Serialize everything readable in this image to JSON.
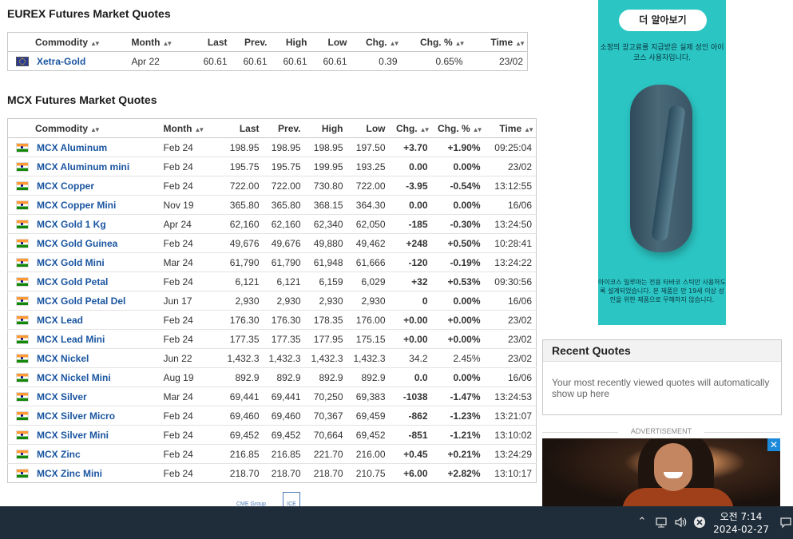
{
  "eurex": {
    "title": "EUREX Futures Market Quotes",
    "headers": {
      "commodity": "Commodity",
      "month": "Month",
      "last": "Last",
      "prev": "Prev.",
      "high": "High",
      "low": "Low",
      "chg": "Chg.",
      "chg_pct": "Chg. %",
      "time": "Time"
    },
    "rows": [
      {
        "name": "Xetra-Gold",
        "month": "Apr 22",
        "last": "60.61",
        "prev": "60.61",
        "high": "60.61",
        "low": "60.61",
        "chg": "0.39",
        "chg_pct": "0.65%",
        "time": "23/02"
      }
    ]
  },
  "mcx": {
    "title": "MCX Futures Market Quotes",
    "headers": {
      "commodity": "Commodity",
      "month": "Month",
      "last": "Last",
      "prev": "Prev.",
      "high": "High",
      "low": "Low",
      "chg": "Chg.",
      "chg_pct": "Chg. %",
      "time": "Time"
    },
    "rows": [
      {
        "name": "MCX Aluminum",
        "month": "Feb 24",
        "last": "198.95",
        "prev": "198.95",
        "high": "198.95",
        "low": "197.50",
        "chg": "+3.70",
        "chg_pct": "+1.90%",
        "time": "09:25:04"
      },
      {
        "name": "MCX Aluminum mini",
        "month": "Feb 24",
        "last": "195.75",
        "prev": "195.75",
        "high": "199.95",
        "low": "193.25",
        "chg": "0.00",
        "chg_pct": "0.00%",
        "time": "23/02"
      },
      {
        "name": "MCX Copper",
        "month": "Feb 24",
        "last": "722.00",
        "prev": "722.00",
        "high": "730.80",
        "low": "722.00",
        "chg": "-3.95",
        "chg_pct": "-0.54%",
        "time": "13:12:55"
      },
      {
        "name": "MCX Copper Mini",
        "month": "Nov 19",
        "last": "365.80",
        "prev": "365.80",
        "high": "368.15",
        "low": "364.30",
        "chg": "0.00",
        "chg_pct": "0.00%",
        "time": "16/06"
      },
      {
        "name": "MCX Gold 1 Kg",
        "month": "Apr 24",
        "last": "62,160",
        "prev": "62,160",
        "high": "62,340",
        "low": "62,050",
        "chg": "-185",
        "chg_pct": "-0.30%",
        "time": "13:24:50"
      },
      {
        "name": "MCX Gold Guinea",
        "month": "Feb 24",
        "last": "49,676",
        "prev": "49,676",
        "high": "49,880",
        "low": "49,462",
        "chg": "+248",
        "chg_pct": "+0.50%",
        "time": "10:28:41"
      },
      {
        "name": "MCX Gold Mini",
        "month": "Mar 24",
        "last": "61,790",
        "prev": "61,790",
        "high": "61,948",
        "low": "61,666",
        "chg": "-120",
        "chg_pct": "-0.19%",
        "time": "13:24:22"
      },
      {
        "name": "MCX Gold Petal",
        "month": "Feb 24",
        "last": "6,121",
        "prev": "6,121",
        "high": "6,159",
        "low": "6,029",
        "chg": "+32",
        "chg_pct": "+0.53%",
        "time": "09:30:56"
      },
      {
        "name": "MCX Gold Petal Del",
        "month": "Jun 17",
        "last": "2,930",
        "prev": "2,930",
        "high": "2,930",
        "low": "2,930",
        "chg": "0",
        "chg_pct": "0.00%",
        "time": "16/06"
      },
      {
        "name": "MCX Lead",
        "month": "Feb 24",
        "last": "176.30",
        "prev": "176.30",
        "high": "178.35",
        "low": "176.00",
        "chg": "+0.00",
        "chg_pct": "+0.00%",
        "time": "23/02"
      },
      {
        "name": "MCX Lead Mini",
        "month": "Feb 24",
        "last": "177.35",
        "prev": "177.35",
        "high": "177.95",
        "low": "175.15",
        "chg": "+0.00",
        "chg_pct": "+0.00%",
        "time": "23/02"
      },
      {
        "name": "MCX Nickel",
        "month": "Jun 22",
        "last": "1,432.3",
        "prev": "1,432.3",
        "high": "1,432.3",
        "low": "1,432.3",
        "chg": "34.2",
        "chg_pct": "2.45%",
        "time": "23/02"
      },
      {
        "name": "MCX Nickel Mini",
        "month": "Aug 19",
        "last": "892.9",
        "prev": "892.9",
        "high": "892.9",
        "low": "892.9",
        "chg": "0.0",
        "chg_pct": "0.00%",
        "time": "16/06"
      },
      {
        "name": "MCX Silver",
        "month": "Mar 24",
        "last": "69,441",
        "prev": "69,441",
        "high": "70,250",
        "low": "69,383",
        "chg": "-1038",
        "chg_pct": "-1.47%",
        "time": "13:24:53"
      },
      {
        "name": "MCX Silver Micro",
        "month": "Feb 24",
        "last": "69,460",
        "prev": "69,460",
        "high": "70,367",
        "low": "69,459",
        "chg": "-862",
        "chg_pct": "-1.23%",
        "time": "13:21:07"
      },
      {
        "name": "MCX Silver Mini",
        "month": "Feb 24",
        "last": "69,452",
        "prev": "69,452",
        "high": "70,664",
        "low": "69,452",
        "chg": "-851",
        "chg_pct": "-1.21%",
        "time": "13:10:02"
      },
      {
        "name": "MCX Zinc",
        "month": "Feb 24",
        "last": "216.85",
        "prev": "216.85",
        "high": "221.70",
        "low": "216.00",
        "chg": "+0.45",
        "chg_pct": "+0.21%",
        "time": "13:24:29"
      },
      {
        "name": "MCX Zinc Mini",
        "month": "Feb 24",
        "last": "218.70",
        "prev": "218.70",
        "high": "218.70",
        "low": "210.75",
        "chg": "+6.00",
        "chg_pct": "+2.82%",
        "time": "13:10:17"
      }
    ]
  },
  "ad_top": {
    "button": "더 알아보기",
    "text_top": "소정의 광고료를 지급받은 실제 성인 아이코스 사용자입니다.",
    "text_bottom": "아이코스 일루마는 전용 타바코 스틱만 사용하도록 설계되었습니다. 본 제품은 만 19세 이상 성인을 위한 제품으로 무해하지 않습니다.",
    "background": "#2bc6c4"
  },
  "recent_quotes": {
    "title": "Recent Quotes",
    "body": "Your most recently viewed quotes will automatically show up here"
  },
  "advertisement_label": "ADVERTISEMENT",
  "logos": {
    "cme": "CME Group",
    "ice": "ICE"
  },
  "taskbar": {
    "time": "오전 7:14",
    "date": "2024-02-27",
    "icons": [
      "chevron-up-icon",
      "network-icon",
      "volume-icon",
      "close-circle-icon",
      "notification-icon"
    ]
  },
  "colors": {
    "positive": "#1e9e1e",
    "negative": "#e0191b",
    "link": "#1a55a0",
    "taskbar": "#1f2d3a"
  }
}
